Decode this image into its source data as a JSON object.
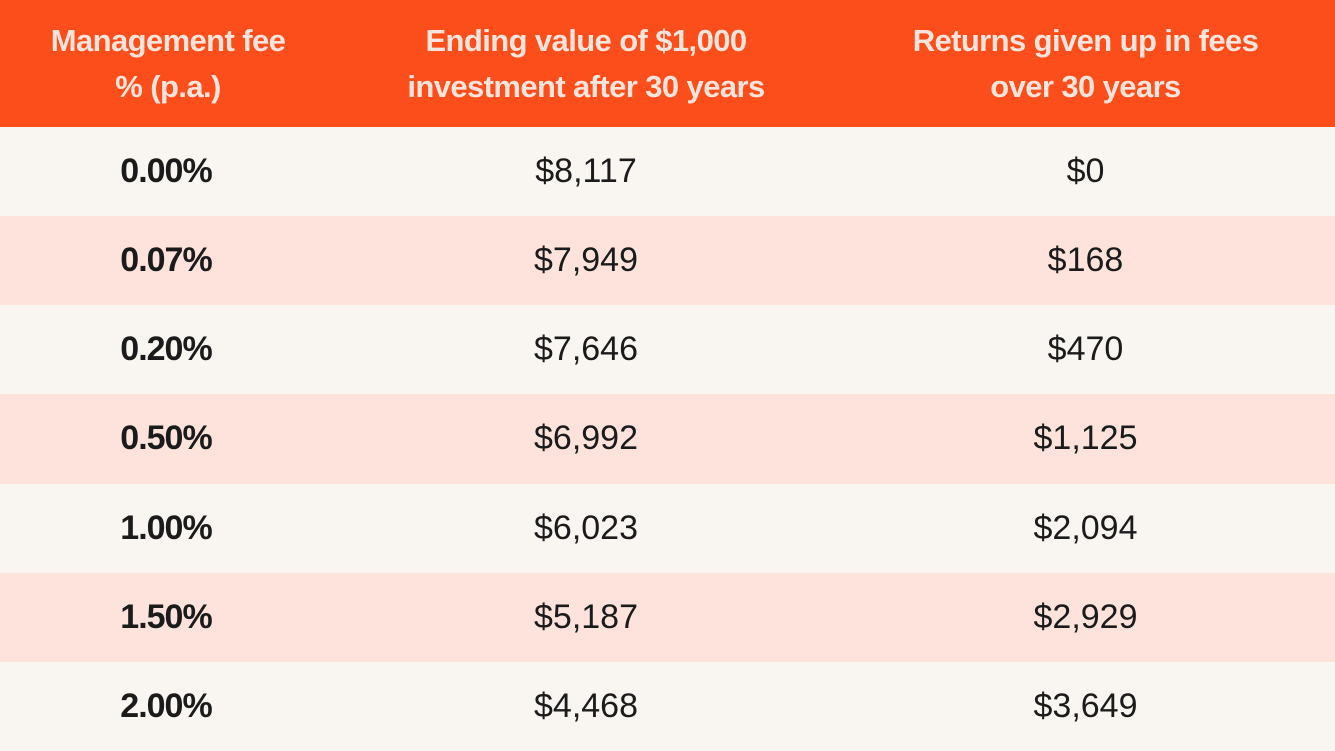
{
  "colors": {
    "header_bg": "#fc4e1a",
    "header_text": "#fbe4dc",
    "row_light": "#f9f6f2",
    "row_tint": "#fee3dd",
    "body_text": "#1b1b1b"
  },
  "chart_data": {
    "type": "table",
    "columns": [
      "Management fee % (p.a.)",
      "Ending value of $1,000 investment after 30 years",
      "Returns given up in fees over 30 years"
    ],
    "header_lines": [
      [
        "Management fee",
        "% (p.a.)"
      ],
      [
        "Ending value of $1,000",
        "investment after 30 years"
      ],
      [
        "Returns given up in fees",
        "over 30 years"
      ]
    ],
    "rows": [
      [
        "0.00%",
        "$8,117",
        "$0"
      ],
      [
        "0.07%",
        "$7,949",
        "$168"
      ],
      [
        "0.20%",
        "$7,646",
        "$470"
      ],
      [
        "0.50%",
        "$6,992",
        "$1,125"
      ],
      [
        "1.00%",
        "$6,023",
        "$2,094"
      ],
      [
        "1.50%",
        "$5,187",
        "$2,929"
      ],
      [
        "2.00%",
        "$4,468",
        "$3,649"
      ]
    ]
  }
}
